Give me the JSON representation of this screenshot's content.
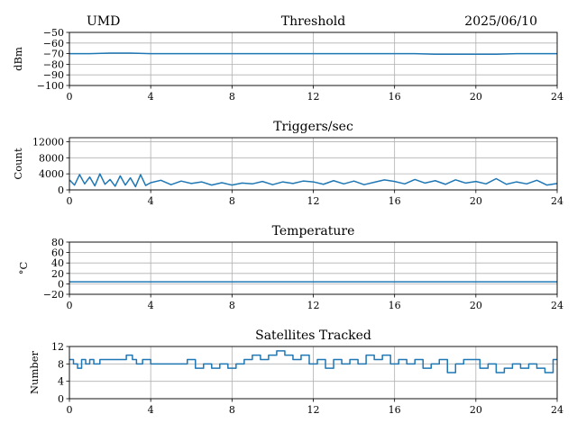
{
  "header": {
    "station": "UMD",
    "date": "2025/06/10"
  },
  "colors": {
    "line": "#1f77b4",
    "grid": "#b0b0b0",
    "axes": "#000000"
  },
  "chart_data": [
    {
      "type": "line",
      "title": "Threshold",
      "ylabel": "dBm",
      "xlim": [
        0,
        24
      ],
      "ylim": [
        -100,
        -50
      ],
      "xticks": [
        0,
        4,
        8,
        12,
        16,
        20,
        24
      ],
      "xtick_labels": [
        "0",
        "4",
        "8",
        "12",
        "16",
        "20",
        "24"
      ],
      "yticks": [
        -100,
        -90,
        -80,
        -70,
        -60,
        -50
      ],
      "ytick_labels": [
        "−100",
        "−90",
        "−80",
        "−70",
        "−60",
        "−50"
      ],
      "grid": true,
      "series": [
        {
          "x": [
            0,
            1,
            2,
            3,
            4,
            5,
            6,
            7,
            8,
            9,
            10,
            11,
            12,
            13,
            14,
            15,
            16,
            17,
            18,
            19,
            20,
            21,
            22,
            23,
            24
          ],
          "values": [
            -70,
            -70,
            -69.5,
            -69.5,
            -70,
            -70,
            -70,
            -70,
            -70,
            -70,
            -70,
            -70,
            -70,
            -70,
            -70,
            -70,
            -70,
            -70,
            -70.5,
            -70.5,
            -70.5,
            -70.5,
            -70,
            -70,
            -70
          ]
        }
      ]
    },
    {
      "type": "line",
      "title": "Triggers/sec",
      "ylabel": "Count",
      "xlim": [
        0,
        24
      ],
      "ylim": [
        0,
        13000
      ],
      "xticks": [
        0,
        4,
        8,
        12,
        16,
        20,
        24
      ],
      "xtick_labels": [
        "0",
        "4",
        "8",
        "12",
        "16",
        "20",
        "24"
      ],
      "yticks": [
        0,
        4000,
        8000,
        12000
      ],
      "ytick_labels": [
        "0",
        "4000",
        "8000",
        "12000"
      ],
      "grid": true,
      "series": [
        {
          "x": [
            0,
            0.25,
            0.5,
            0.75,
            1,
            1.25,
            1.5,
            1.75,
            2,
            2.25,
            2.5,
            2.75,
            3,
            3.25,
            3.5,
            3.75,
            4,
            4.5,
            5,
            5.5,
            6,
            6.5,
            7,
            7.5,
            8,
            8.5,
            9,
            9.5,
            10,
            10.5,
            11,
            11.5,
            12,
            12.5,
            13,
            13.5,
            14,
            14.5,
            15,
            15.5,
            16,
            16.5,
            17,
            17.5,
            18,
            18.5,
            19,
            19.5,
            20,
            20.5,
            21,
            21.5,
            22,
            22.5,
            23,
            23.5,
            24
          ],
          "values": [
            2500,
            1200,
            3800,
            1500,
            3200,
            1000,
            4000,
            1400,
            2600,
            900,
            3500,
            1200,
            3000,
            800,
            3800,
            1100,
            1800,
            2400,
            1300,
            2200,
            1600,
            2000,
            1200,
            1800,
            1200,
            1700,
            1500,
            2100,
            1300,
            2000,
            1600,
            2200,
            2000,
            1400,
            2300,
            1500,
            2200,
            1300,
            1900,
            2500,
            2100,
            1500,
            2600,
            1700,
            2300,
            1400,
            2500,
            1700,
            2100,
            1500,
            2800,
            1400,
            2000,
            1500,
            2400,
            1200,
            1600
          ]
        }
      ]
    },
    {
      "type": "line",
      "title": "Temperature",
      "ylabel": "°C",
      "xlim": [
        0,
        24
      ],
      "ylim": [
        -20,
        80
      ],
      "xticks": [
        0,
        4,
        8,
        12,
        16,
        20,
        24
      ],
      "xtick_labels": [
        "0",
        "4",
        "8",
        "12",
        "16",
        "20",
        "24"
      ],
      "yticks": [
        -20,
        0,
        20,
        40,
        60,
        80
      ],
      "ytick_labels": [
        "−20",
        "0",
        "20",
        "40",
        "60",
        "80"
      ],
      "grid": true,
      "series": [
        {
          "x": [
            0,
            24
          ],
          "values": [
            4,
            4
          ]
        }
      ]
    },
    {
      "type": "line",
      "title": "Satellites Tracked",
      "ylabel": "Number",
      "xlim": [
        0,
        24
      ],
      "ylim": [
        0,
        12
      ],
      "xticks": [
        0,
        4,
        8,
        12,
        16,
        20,
        24
      ],
      "xtick_labels": [
        "0",
        "4",
        "8",
        "12",
        "16",
        "20",
        "24"
      ],
      "yticks": [
        0,
        4,
        8,
        12
      ],
      "ytick_labels": [
        "0",
        "4",
        "8",
        "12"
      ],
      "grid": true,
      "step": true,
      "series": [
        {
          "x": [
            0,
            0.2,
            0.4,
            0.6,
            0.8,
            1.0,
            1.2,
            1.5,
            2.0,
            2.4,
            2.8,
            3.1,
            3.3,
            3.6,
            4.0,
            4.5,
            5.0,
            5.4,
            5.8,
            6.2,
            6.6,
            7.0,
            7.4,
            7.8,
            8.2,
            8.6,
            9.0,
            9.4,
            9.8,
            10.2,
            10.6,
            11.0,
            11.4,
            11.8,
            12.2,
            12.6,
            13.0,
            13.4,
            13.8,
            14.2,
            14.6,
            15.0,
            15.4,
            15.8,
            16.2,
            16.6,
            17.0,
            17.4,
            17.8,
            18.2,
            18.6,
            19.0,
            19.4,
            19.8,
            20.2,
            20.6,
            21.0,
            21.4,
            21.8,
            22.2,
            22.6,
            23.0,
            23.4,
            23.8,
            24
          ],
          "values": [
            9,
            8,
            7,
            9,
            8,
            9,
            8,
            9,
            9,
            9,
            10,
            9,
            8,
            9,
            8,
            8,
            8,
            8,
            9,
            7,
            8,
            7,
            8,
            7,
            8,
            9,
            10,
            9,
            10,
            11,
            10,
            9,
            10,
            8,
            9,
            7,
            9,
            8,
            9,
            8,
            10,
            9,
            10,
            8,
            9,
            8,
            9,
            7,
            8,
            9,
            6,
            8,
            9,
            9,
            7,
            8,
            6,
            7,
            8,
            7,
            8,
            7,
            6,
            9,
            9
          ]
        }
      ]
    }
  ]
}
